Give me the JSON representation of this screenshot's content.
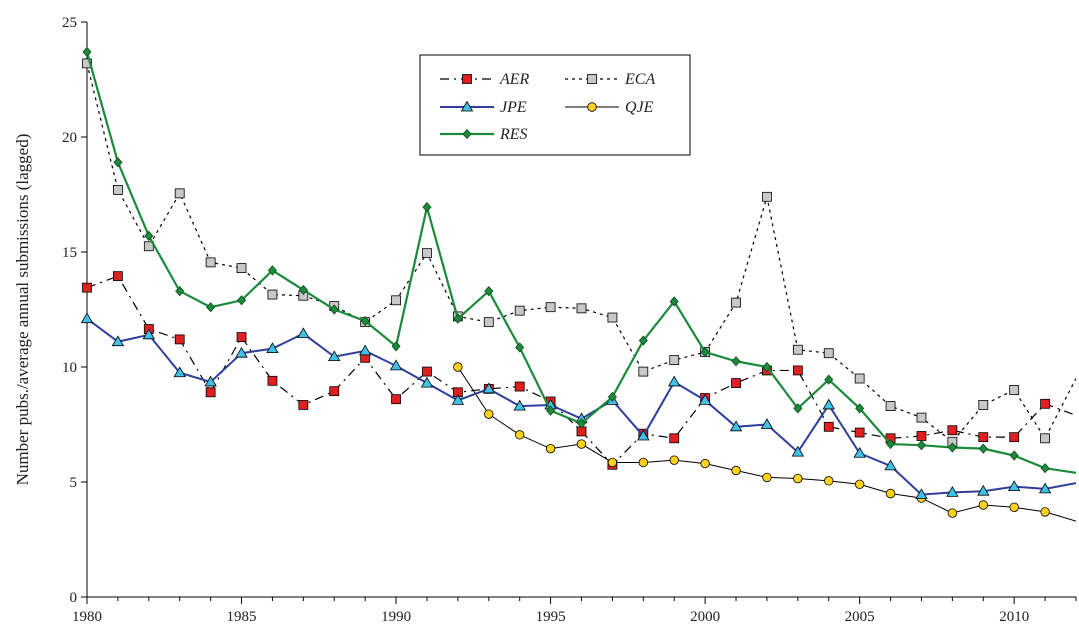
{
  "chart_data": {
    "type": "line",
    "title": "",
    "xlabel": "",
    "ylabel": "Number pubs./average annual submissions (lagged)",
    "xlim": [
      1980,
      2012
    ],
    "ylim": [
      0,
      25
    ],
    "xticks": [
      1980,
      1985,
      1990,
      1995,
      2000,
      2005,
      2010
    ],
    "yticks": [
      0,
      5,
      10,
      15,
      20,
      25
    ],
    "grid": false,
    "legend": "top-center",
    "series": [
      {
        "name": "AER",
        "color": "#000000",
        "marker": "square",
        "markerFill": "#e02020",
        "dash": "9,5,2,5",
        "width": 1.2,
        "x": [
          1980,
          1981,
          1982,
          1983,
          1984,
          1985,
          1986,
          1987,
          1988,
          1989,
          1990,
          1991,
          1992,
          1993,
          1994,
          1995,
          1996,
          1997,
          1998,
          1999,
          2000,
          2001,
          2002,
          2003,
          2004,
          2005,
          2006,
          2007,
          2008,
          2009,
          2010,
          2011,
          2012
        ],
        "values": [
          13.45,
          13.95,
          11.65,
          11.2,
          8.9,
          11.3,
          9.4,
          8.35,
          8.95,
          10.4,
          8.6,
          9.8,
          8.9,
          9.05,
          9.15,
          8.5,
          7.2,
          5.75,
          7.1,
          6.9,
          8.65,
          9.3,
          9.85,
          9.85,
          7.4,
          7.15,
          6.9,
          7.0,
          7.25,
          6.95,
          6.95,
          8.4,
          7.9
        ]
      },
      {
        "name": "ECA",
        "color": "#000000",
        "marker": "square",
        "markerFill": "#c8c8c8",
        "dash": "3,4",
        "width": 1.2,
        "x": [
          1980,
          1981,
          1982,
          1983,
          1984,
          1985,
          1986,
          1987,
          1988,
          1989,
          1990,
          1991,
          1992,
          1993,
          1994,
          1995,
          1996,
          1997,
          1998,
          1999,
          2000,
          2001,
          2002,
          2003,
          2004,
          2005,
          2006,
          2007,
          2008,
          2009,
          2010,
          2011,
          2012
        ],
        "values": [
          23.2,
          17.7,
          15.25,
          17.55,
          14.55,
          14.3,
          13.15,
          13.1,
          12.65,
          11.95,
          12.9,
          14.95,
          12.2,
          11.95,
          12.45,
          12.6,
          12.55,
          12.15,
          9.8,
          10.3,
          10.65,
          12.8,
          17.4,
          10.75,
          10.6,
          9.5,
          8.3,
          7.8,
          6.75,
          8.35,
          9.0,
          6.9,
          9.5
        ]
      },
      {
        "name": "JPE",
        "color": "#2e3f9c",
        "marker": "triangle",
        "markerFill": "#3fc1e8",
        "dash": "",
        "width": 2,
        "x": [
          1980,
          1981,
          1982,
          1983,
          1984,
          1985,
          1986,
          1987,
          1988,
          1989,
          1990,
          1991,
          1992,
          1993,
          1994,
          1995,
          1996,
          1997,
          1998,
          1999,
          2000,
          2001,
          2002,
          2003,
          2004,
          2005,
          2006,
          2007,
          2008,
          2009,
          2010,
          2011,
          2012
        ],
        "values": [
          12.1,
          11.1,
          11.4,
          9.75,
          9.35,
          10.6,
          10.8,
          11.45,
          10.45,
          10.7,
          10.05,
          9.3,
          8.55,
          9.05,
          8.3,
          8.35,
          7.75,
          8.55,
          7.0,
          9.35,
          8.55,
          7.4,
          7.5,
          6.3,
          8.35,
          6.25,
          5.7,
          4.45,
          4.55,
          4.6,
          4.8,
          4.7,
          4.95
        ]
      },
      {
        "name": "QJE",
        "color": "#000000",
        "marker": "circle",
        "markerFill": "#ffd21a",
        "dash": "",
        "width": 1,
        "x": [
          1992,
          1993,
          1994,
          1995,
          1996,
          1997,
          1998,
          1999,
          2000,
          2001,
          2002,
          2003,
          2004,
          2005,
          2006,
          2007,
          2008,
          2009,
          2010,
          2011,
          2012
        ],
        "values": [
          10.0,
          7.95,
          7.05,
          6.45,
          6.65,
          5.85,
          5.85,
          5.95,
          5.8,
          5.5,
          5.2,
          5.15,
          5.05,
          4.9,
          4.5,
          4.3,
          3.65,
          4.0,
          3.9,
          3.7,
          3.3
        ]
      },
      {
        "name": "RES",
        "color": "#1b8a3a",
        "marker": "diamond",
        "markerFill": "#1b8a3a",
        "dash": "",
        "width": 2.2,
        "x": [
          1980,
          1981,
          1982,
          1983,
          1984,
          1985,
          1986,
          1987,
          1988,
          1989,
          1990,
          1991,
          1992,
          1993,
          1994,
          1995,
          1996,
          1997,
          1998,
          1999,
          2000,
          2001,
          2002,
          2003,
          2004,
          2005,
          2006,
          2007,
          2008,
          2009,
          2010,
          2011,
          2012
        ],
        "values": [
          23.7,
          18.9,
          15.7,
          13.3,
          12.6,
          12.9,
          14.2,
          13.35,
          12.5,
          12.0,
          10.9,
          16.95,
          12.1,
          13.3,
          10.85,
          8.1,
          7.55,
          8.7,
          11.15,
          12.85,
          10.65,
          10.25,
          10.0,
          8.2,
          9.45,
          8.2,
          6.65,
          6.6,
          6.5,
          6.45,
          6.15,
          5.6,
          5.4
        ]
      }
    ]
  }
}
